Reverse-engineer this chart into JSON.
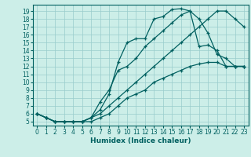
{
  "xlabel": "Humidex (Indice chaleur)",
  "bg_color": "#cceee8",
  "line_color": "#006060",
  "grid_color": "#99cccc",
  "spine_color": "#006060",
  "ylim": [
    4.5,
    19.8
  ],
  "xlim": [
    -0.5,
    23.5
  ],
  "yticks": [
    5,
    6,
    7,
    8,
    9,
    10,
    11,
    12,
    13,
    14,
    15,
    16,
    17,
    18,
    19
  ],
  "xticks": [
    0,
    1,
    2,
    3,
    4,
    5,
    6,
    7,
    8,
    9,
    10,
    11,
    12,
    13,
    14,
    15,
    16,
    17,
    18,
    19,
    20,
    21,
    22,
    23
  ],
  "lines": [
    {
      "x": [
        0,
        1,
        2,
        3,
        4,
        5,
        6,
        7,
        8,
        9,
        10,
        11,
        12,
        13,
        14,
        15,
        16,
        17,
        18,
        19,
        20,
        21,
        22,
        23
      ],
      "y": [
        6,
        5.5,
        5,
        5,
        5,
        5,
        5.5,
        6,
        7,
        8,
        9,
        10,
        11,
        12,
        13,
        14,
        15,
        16,
        17,
        18,
        19,
        19,
        18,
        17
      ]
    },
    {
      "x": [
        0,
        1,
        2,
        3,
        4,
        5,
        6,
        7,
        8,
        9,
        10,
        11,
        12,
        13,
        14,
        15,
        16,
        17,
        18,
        19,
        20,
        21,
        22,
        23
      ],
      "y": [
        6,
        5.5,
        5,
        5,
        5,
        5,
        5.5,
        6.5,
        8.5,
        12.5,
        15,
        15.5,
        15.5,
        18,
        18.3,
        19.2,
        19.3,
        19,
        18,
        16.2,
        13.5,
        13,
        12,
        12
      ]
    },
    {
      "x": [
        0,
        1,
        2,
        3,
        4,
        5,
        6,
        7,
        8,
        9,
        10,
        11,
        12,
        13,
        14,
        15,
        16,
        17,
        18,
        19,
        20,
        21,
        22,
        23
      ],
      "y": [
        6,
        5.5,
        5,
        5,
        5,
        5,
        5.5,
        7.5,
        9,
        11.5,
        12,
        13,
        14.5,
        15.5,
        16.5,
        17.5,
        18.5,
        19,
        14.5,
        14.7,
        14,
        12,
        12,
        12
      ]
    },
    {
      "x": [
        0,
        1,
        2,
        3,
        4,
        5,
        6,
        7,
        8,
        9,
        10,
        11,
        12,
        13,
        14,
        15,
        16,
        17,
        18,
        19,
        20,
        21,
        22,
        23
      ],
      "y": [
        6,
        5.5,
        5,
        5,
        5,
        5,
        5,
        5.5,
        6,
        7,
        8,
        8.5,
        9,
        10,
        10.5,
        11,
        11.5,
        12,
        12.3,
        12.5,
        12.5,
        12,
        12,
        12
      ]
    }
  ],
  "xlabel_fontsize": 6.5,
  "tick_fontsize": 5.5,
  "title_fontsize": 7
}
